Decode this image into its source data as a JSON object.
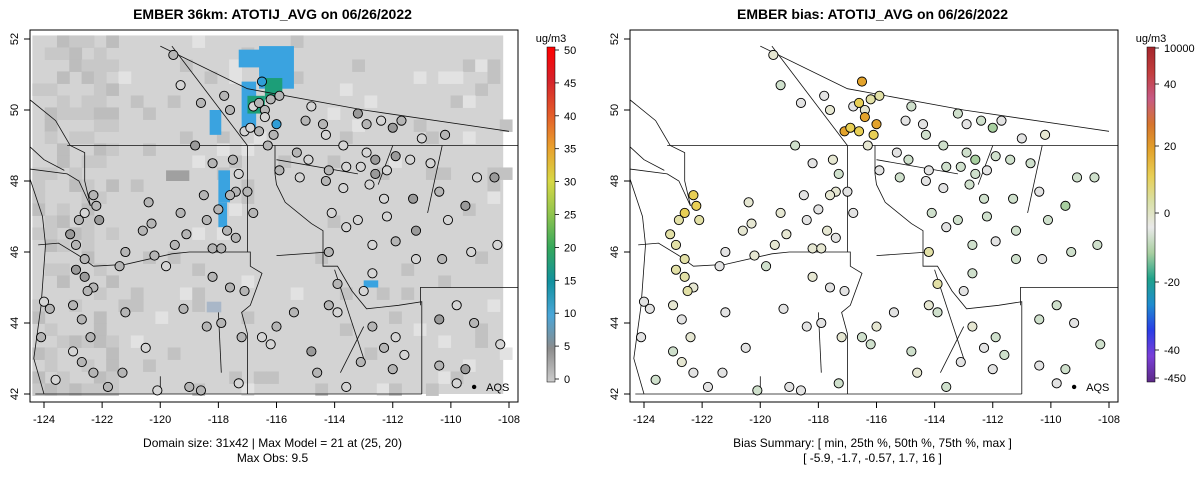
{
  "panels": [
    {
      "title": "EMBER 36km: ATOTIJ_AVG on 06/26/2022",
      "footer_line1": "Domain size: 31x42 | Max Model = 21 at (25, 20)",
      "footer_line2": "Max Obs: 9.5",
      "unit": "ug/m3",
      "colorbar_labels": [
        "50",
        "45",
        "40",
        "35",
        "30",
        "25",
        "20",
        "15",
        "10",
        "5",
        "0"
      ],
      "marker_label": "AQS"
    },
    {
      "title": "EMBER bias: ATOTIJ_AVG on 06/26/2022",
      "footer_line1": "Bias Summary: [ min, 25th %, 50th %, 75th %, max ]",
      "footer_line2": "[ -5.9,   -1.7,   -0.57,   1.7,   16 ]",
      "unit": "ug/m3",
      "colorbar_labels": [
        "10000",
        "40",
        "20",
        "0",
        "-20",
        "-40",
        "-450"
      ],
      "marker_label": "AQS"
    }
  ],
  "map": {
    "x_ticks": [
      "-124",
      "-122",
      "-120",
      "-118",
      "-116",
      "-114",
      "-112",
      "-110",
      "-108"
    ],
    "y_ticks": [
      "42",
      "44",
      "46",
      "48",
      "50",
      "52"
    ]
  },
  "colors": {
    "model_gray": "#d3d3d3",
    "model_blue": "#3aa3e0",
    "model_green": "#1c9e78",
    "bias_yellow": "#e8cf55",
    "bias_orange": "#e3a32c",
    "bias_green": "#a8cfa0"
  }
}
